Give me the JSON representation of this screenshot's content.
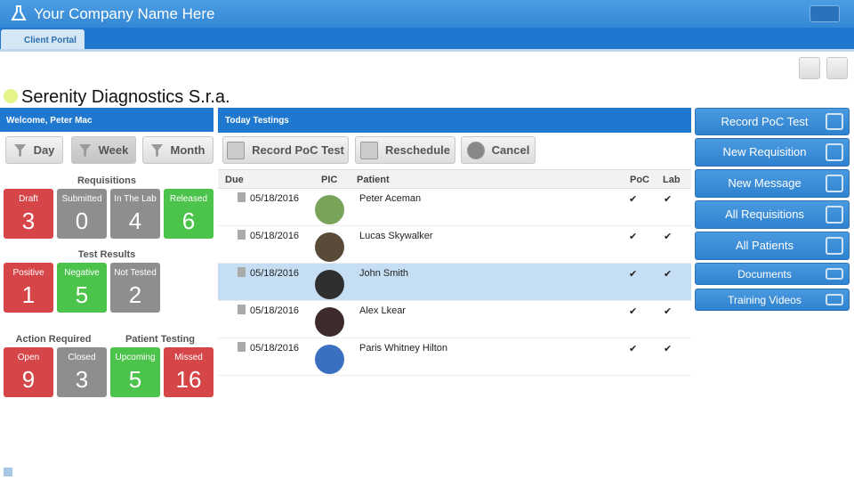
{
  "header": {
    "title": "Your Company Name Here",
    "tab": "Client Portal"
  },
  "organization": "Serenity Diagnostics S.r.a.",
  "summary": {
    "welcome": "Welcome, Peter Mac",
    "filters": [
      "Day",
      "Week",
      "Month"
    ],
    "groups": [
      {
        "title": "Requisitions",
        "tiles": [
          {
            "label": "Draft",
            "count": 3,
            "color": "#d64548"
          },
          {
            "label": "Submitted",
            "count": 0,
            "color": "#8e8e8e"
          },
          {
            "label": "In The Lab",
            "count": 4,
            "color": "#8e8e8e"
          },
          {
            "label": "Released",
            "count": 6,
            "color": "#4cc44c"
          }
        ]
      },
      {
        "title": "Test Results",
        "tiles": [
          {
            "label": "Positive",
            "count": 1,
            "color": "#d64548"
          },
          {
            "label": "Negative",
            "count": 5,
            "color": "#4cc44c"
          },
          {
            "label": "Not Tested",
            "count": 2,
            "color": "#8e8e8e"
          }
        ]
      },
      {
        "title": "Action Required",
        "tiles": [
          {
            "label": "Open",
            "count": 9,
            "color": "#d64548"
          },
          {
            "label": "Closed",
            "count": 3,
            "color": "#8e8e8e"
          }
        ]
      },
      {
        "title": "Patient Testing",
        "tiles": [
          {
            "label": "Upcoming",
            "count": 5,
            "color": "#4cc44c"
          },
          {
            "label": "Missed",
            "count": 16,
            "color": "#d64548"
          }
        ]
      }
    ]
  },
  "testings": {
    "title": "Today Testings",
    "actions": [
      "Record PoC Test",
      "Reschedule",
      "Cancel"
    ],
    "columns": [
      "Due",
      "PIC",
      "Patient",
      "PoC",
      "Lab"
    ],
    "rows": [
      {
        "due": "05/18/2016",
        "patient": "Peter Aceman",
        "poc": "✔",
        "lab": "✔",
        "selected": false
      },
      {
        "due": "05/18/2016",
        "patient": "Lucas Skywalker",
        "poc": "✔",
        "lab": "✔",
        "selected": false
      },
      {
        "due": "05/18/2016",
        "patient": "John Smith",
        "poc": "✔",
        "lab": "✔",
        "selected": true
      },
      {
        "due": "05/18/2016",
        "patient": "Alex Lkear",
        "poc": "✔",
        "lab": "✔",
        "selected": false
      },
      {
        "due": "05/18/2016",
        "patient": "Paris Whitney Hilton",
        "poc": "✔",
        "lab": "✔",
        "selected": false
      }
    ]
  },
  "quick_actions": [
    "Record PoC Test",
    "New Requisition",
    "New Message",
    "All Requisitions",
    "All Patients",
    "Documents",
    "Training Videos"
  ]
}
